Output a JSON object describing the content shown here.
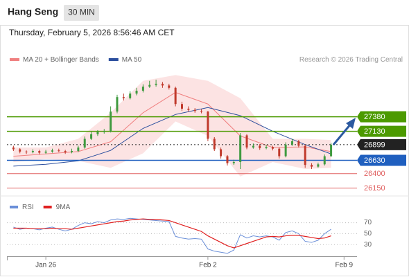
{
  "header": {
    "title": "Hang Seng",
    "interval": "30 MIN",
    "datetime": "Thursday, February 5, 2026 8:56:46 AM CET"
  },
  "chart_data": [
    {
      "type": "candlestick",
      "source": "Research © 2026 Trading Central",
      "up_color": "#3f9a3f",
      "down_color": "#c0392b",
      "xlim": [
        -1,
        53
      ],
      "ylim": [
        26050,
        28200
      ],
      "ohlc": [
        [
          26850,
          26880,
          26790,
          26820
        ],
        [
          26820,
          26840,
          26750,
          26780
        ],
        [
          26780,
          26800,
          26740,
          26770
        ],
        [
          26770,
          26820,
          26750,
          26790
        ],
        [
          26790,
          26810,
          26730,
          26760
        ],
        [
          26760,
          26810,
          26740,
          26780
        ],
        [
          26780,
          26830,
          26760,
          26800
        ],
        [
          26800,
          26830,
          26770,
          26790
        ],
        [
          26790,
          26810,
          26740,
          26770
        ],
        [
          26770,
          26830,
          26750,
          26790
        ],
        [
          26790,
          26880,
          26770,
          26850
        ],
        [
          26850,
          27040,
          26830,
          27000
        ],
        [
          27000,
          27120,
          26980,
          27080
        ],
        [
          27080,
          27150,
          27050,
          27120
        ],
        [
          27120,
          27170,
          27090,
          27130
        ],
        [
          27130,
          27560,
          27110,
          27470
        ],
        [
          27470,
          27760,
          27440,
          27720
        ],
        [
          27720,
          27780,
          27660,
          27700
        ],
        [
          27700,
          27820,
          27680,
          27780
        ],
        [
          27780,
          27880,
          27750,
          27830
        ],
        [
          27830,
          27940,
          27800,
          27900
        ],
        [
          27900,
          28000,
          27880,
          27930
        ],
        [
          27930,
          28020,
          27900,
          27950
        ],
        [
          27950,
          27980,
          27880,
          27920
        ],
        [
          27920,
          27950,
          27850,
          27880
        ],
        [
          27880,
          27900,
          27560,
          27600
        ],
        [
          27600,
          27640,
          27480,
          27520
        ],
        [
          27520,
          27560,
          27470,
          27500
        ],
        [
          27500,
          27530,
          27450,
          27480
        ],
        [
          27480,
          27510,
          27440,
          27470
        ],
        [
          27470,
          27480,
          26960,
          27000
        ],
        [
          27000,
          27030,
          26790,
          26820
        ],
        [
          26820,
          26850,
          26660,
          26700
        ],
        [
          26700,
          26720,
          26540,
          26580
        ],
        [
          26580,
          26640,
          26550,
          26600
        ],
        [
          26600,
          27100,
          26480,
          27060
        ],
        [
          27060,
          27080,
          26820,
          26850
        ],
        [
          26850,
          26920,
          26830,
          26880
        ],
        [
          26880,
          26910,
          26810,
          26840
        ],
        [
          26840,
          26900,
          26820,
          26860
        ],
        [
          26860,
          26880,
          26800,
          26830
        ],
        [
          26830,
          26850,
          26660,
          26700
        ],
        [
          26700,
          26940,
          26680,
          26900
        ],
        [
          26900,
          27000,
          26880,
          26960
        ],
        [
          26960,
          26980,
          26850,
          26880
        ],
        [
          26880,
          26900,
          26500,
          26550
        ],
        [
          26550,
          26580,
          26480,
          26520
        ],
        [
          26520,
          26590,
          26500,
          26560
        ],
        [
          26560,
          26730,
          26540,
          26700
        ],
        [
          26700,
          26930,
          26690,
          26899
        ]
      ],
      "series": [
        {
          "name": "MA 20 + Bollinger Bands",
          "color": "#f08080",
          "x": [
            0,
            5,
            10,
            15,
            20,
            25,
            30,
            35,
            40,
            45,
            49
          ],
          "values": [
            26700,
            26740,
            26780,
            26950,
            27450,
            27800,
            27600,
            27050,
            26850,
            26860,
            26780
          ],
          "upper": [
            26850,
            26850,
            27000,
            27450,
            28000,
            28100,
            28000,
            27700,
            27000,
            27000,
            26980
          ],
          "lower": [
            26600,
            26650,
            26620,
            26500,
            26750,
            27300,
            27050,
            26350,
            26600,
            26480,
            26500
          ]
        },
        {
          "name": "MA 50",
          "color": "#2c4f9e",
          "x": [
            0,
            5,
            10,
            15,
            20,
            25,
            30,
            35,
            40,
            45,
            49
          ],
          "values": [
            26530,
            26560,
            26620,
            26800,
            27180,
            27420,
            27540,
            27400,
            27130,
            26900,
            26740
          ]
        }
      ],
      "levels": [
        {
          "value": 27380,
          "color": "#4c9a00",
          "label_style": "box"
        },
        {
          "value": 27130,
          "color": "#4c9a00",
          "label_style": "box"
        },
        {
          "value": 26899,
          "color": "#222222",
          "label_style": "box",
          "dotted": true
        },
        {
          "value": 26630,
          "color": "#1f5fbf",
          "label_style": "box"
        },
        {
          "value": 26400,
          "color": "#e06060",
          "label_style": "text"
        },
        {
          "value": 26150,
          "color": "#e06060",
          "label_style": "text"
        }
      ]
    },
    {
      "type": "line",
      "xlim": [
        -1,
        53
      ],
      "ylim": [
        10,
        110
      ],
      "yticks": [
        70,
        50,
        30
      ],
      "xticks": [
        {
          "value": 5,
          "label": "Jan 26"
        },
        {
          "value": 30,
          "label": "Feb 2"
        },
        {
          "value": 51,
          "label": "Feb 9"
        }
      ],
      "series": [
        {
          "name": "RSI",
          "color": "#6a8fd8",
          "values": [
            62,
            58,
            60,
            59,
            57,
            60,
            62,
            58,
            55,
            58,
            65,
            70,
            68,
            72,
            70,
            75,
            77,
            76,
            78,
            77,
            76,
            75,
            74,
            73,
            72,
            45,
            42,
            40,
            41,
            40,
            22,
            18,
            16,
            14,
            20,
            48,
            42,
            46,
            44,
            46,
            44,
            38,
            52,
            55,
            50,
            36,
            34,
            38,
            50,
            58
          ]
        },
        {
          "name": "9MA",
          "color": "#e02020",
          "values": [
            60,
            60,
            60,
            59,
            59,
            59,
            60,
            59,
            59,
            58,
            60,
            62,
            64,
            66,
            68,
            70,
            72,
            73,
            75,
            76,
            77,
            76,
            76,
            75,
            74,
            70,
            66,
            62,
            58,
            54,
            46,
            40,
            34,
            28,
            24,
            28,
            32,
            36,
            40,
            44,
            45,
            44,
            46,
            47,
            47,
            45,
            43,
            41,
            42,
            46
          ]
        }
      ]
    }
  ]
}
